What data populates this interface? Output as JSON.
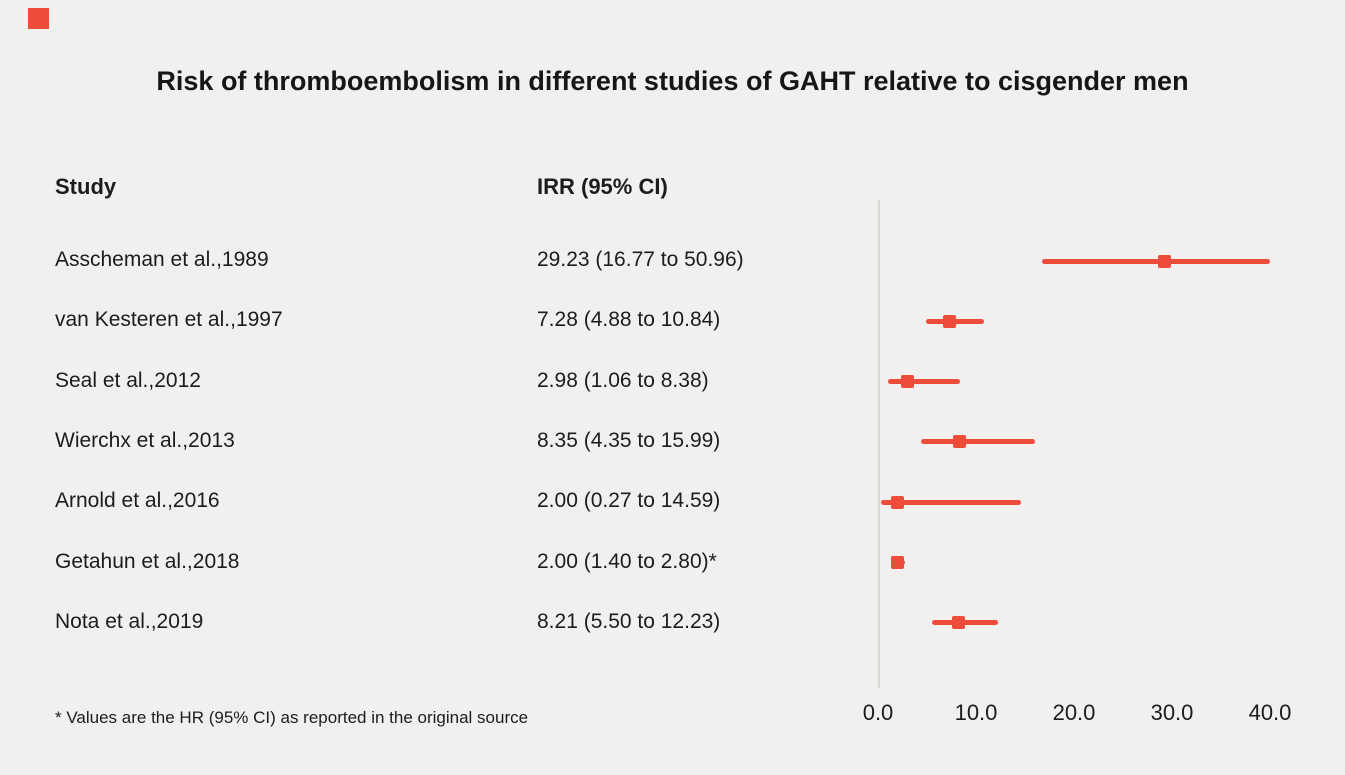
{
  "page": {
    "title": "Risk of thromboembolism in different studies of GAHT relative to cisgender men",
    "footnote": "* Values are the HR (95% CI) as reported in the original source",
    "accent_color": "#ee4c3b",
    "background_color": "#f1f0ee"
  },
  "table": {
    "columns": [
      "Study",
      "IRR (95% CI)"
    ]
  },
  "chart_data": {
    "type": "scatter",
    "subtype": "forest-plot",
    "title": "Risk of thromboembolism in different studies of GAHT relative to cisgender men",
    "xlabel": "",
    "ylabel": "",
    "xlim": [
      0,
      40
    ],
    "x_ticks": [
      0,
      10,
      20,
      30,
      40
    ],
    "x_tick_labels": [
      "0.0",
      "10.0",
      "20.0",
      "30.0",
      "40.0"
    ],
    "grid": false,
    "marker_color": "#ee4c3b",
    "axis_line_color": "#d9d8d4",
    "studies": [
      {
        "label": "Asscheman et al.,1989",
        "irr_text": "29.23 (16.77 to 50.96)",
        "irr": 29.23,
        "ci_low": 16.77,
        "ci_high": 50.96
      },
      {
        "label": "van Kesteren et al.,1997",
        "irr_text": "7.28 (4.88 to 10.84)",
        "irr": 7.28,
        "ci_low": 4.88,
        "ci_high": 10.84
      },
      {
        "label": "Seal et al.,2012",
        "irr_text": "2.98 (1.06 to 8.38)",
        "irr": 2.98,
        "ci_low": 1.06,
        "ci_high": 8.38
      },
      {
        "label": "Wierchx et al.,2013",
        "irr_text": "8.35 (4.35 to 15.99)",
        "irr": 8.35,
        "ci_low": 4.35,
        "ci_high": 15.99
      },
      {
        "label": "Arnold et al.,2016",
        "irr_text": "2.00 (0.27 to 14.59)",
        "irr": 2.0,
        "ci_low": 0.27,
        "ci_high": 14.59
      },
      {
        "label": "Getahun et al.,2018",
        "irr_text": "2.00 (1.40 to 2.80)*",
        "irr": 2.0,
        "ci_low": 1.4,
        "ci_high": 2.8
      },
      {
        "label": "Nota et al.,2019",
        "irr_text": "8.21 (5.50 to 12.23)",
        "irr": 8.21,
        "ci_low": 5.5,
        "ci_high": 12.23
      }
    ]
  }
}
